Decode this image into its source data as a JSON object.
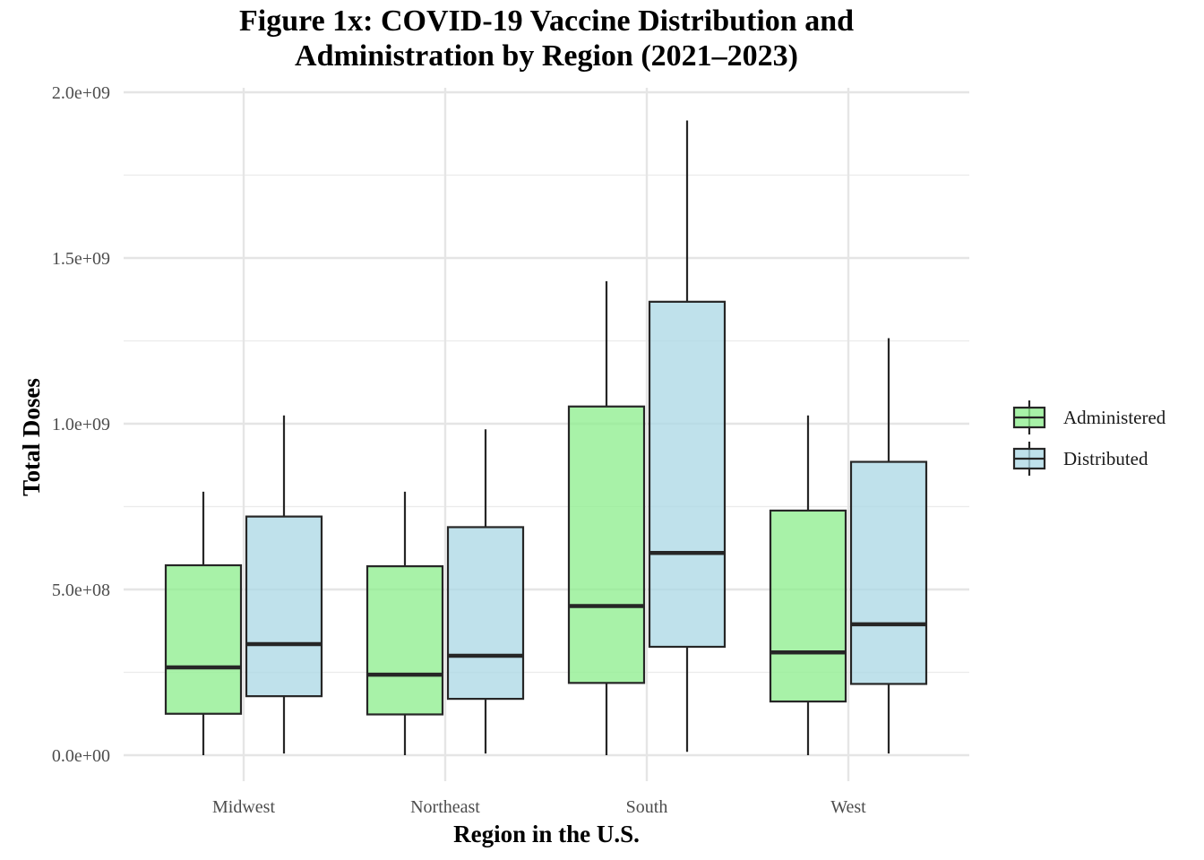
{
  "chart_data": {
    "type": "boxplot",
    "title": [
      "Figure 1x: COVID-19 Vaccine Distribution and",
      "Administration by Region (2021–2023)"
    ],
    "xlabel": "Region in the U.S.",
    "ylabel": "Total Doses",
    "ylim": [
      -70000000,
      2000000000
    ],
    "yticks": [
      0,
      500000000,
      1000000000,
      1500000000,
      2000000000
    ],
    "ytick_labels": [
      "0.0e+00",
      "5.0e+08",
      "1.0e+09",
      "1.5e+09",
      "2.0e+09"
    ],
    "categories": [
      "Midwest",
      "Northeast",
      "South",
      "West"
    ],
    "grid": true,
    "legend_position": "right",
    "series": [
      {
        "name": "Administered",
        "color": "#90ee90",
        "boxes": [
          {
            "min": 0,
            "q1": 125000000,
            "median": 265000000,
            "q3": 573000000,
            "max": 795000000
          },
          {
            "min": 0,
            "q1": 123000000,
            "median": 243000000,
            "q3": 570000000,
            "max": 795000000
          },
          {
            "min": 0,
            "q1": 218000000,
            "median": 450000000,
            "q3": 1052000000,
            "max": 1430000000
          },
          {
            "min": 0,
            "q1": 162000000,
            "median": 310000000,
            "q3": 738000000,
            "max": 1025000000
          }
        ]
      },
      {
        "name": "Distributed",
        "color": "#add8e6",
        "boxes": [
          {
            "min": 5000000,
            "q1": 178000000,
            "median": 335000000,
            "q3": 720000000,
            "max": 1025000000
          },
          {
            "min": 5000000,
            "q1": 170000000,
            "median": 300000000,
            "q3": 688000000,
            "max": 983000000
          },
          {
            "min": 10000000,
            "q1": 327000000,
            "median": 610000000,
            "q3": 1368000000,
            "max": 1915000000
          },
          {
            "min": 5000000,
            "q1": 215000000,
            "median": 395000000,
            "q3": 885000000,
            "max": 1258000000
          }
        ]
      }
    ]
  }
}
